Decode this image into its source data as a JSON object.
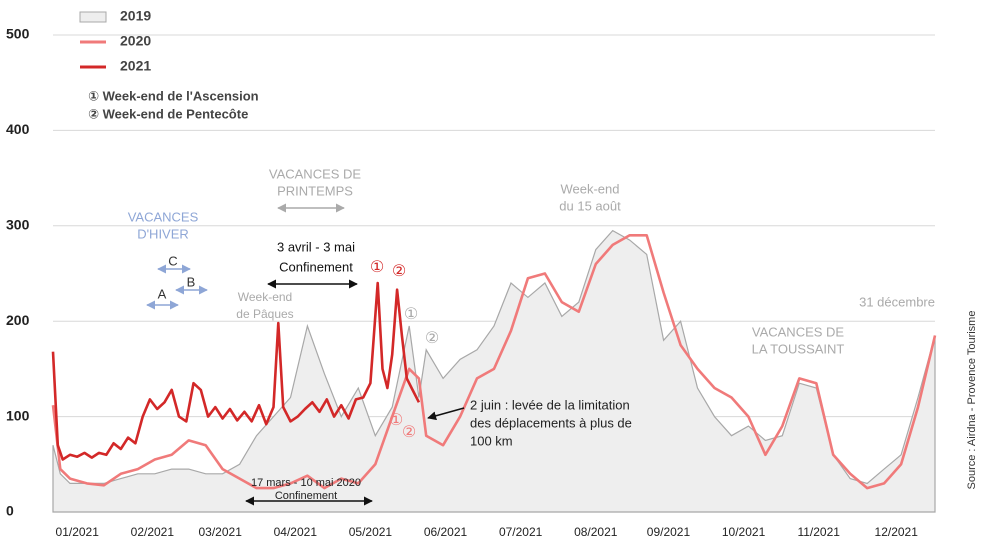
{
  "chart_data": {
    "type": "line",
    "xlim": [
      1,
      365
    ],
    "ylim": [
      0,
      500
    ],
    "yticks": [
      0,
      100,
      200,
      300,
      400,
      500
    ],
    "xticks": [
      {
        "value": 11,
        "label": "01/2021"
      },
      {
        "value": 42,
        "label": "02/2021"
      },
      {
        "value": 70,
        "label": "03/2021"
      },
      {
        "value": 101,
        "label": "04/2021"
      },
      {
        "value": 132,
        "label": "05/2021"
      },
      {
        "value": 163,
        "label": "06/2021"
      },
      {
        "value": 194,
        "label": "07/2021"
      },
      {
        "value": 225,
        "label": "08/2021"
      },
      {
        "value": 255,
        "label": "09/2021"
      },
      {
        "value": 286,
        "label": "10/2021"
      },
      {
        "value": 317,
        "label": "11/2021"
      },
      {
        "value": 349,
        "label": "12/2021"
      }
    ],
    "grid": true,
    "legend": "top-left",
    "series": [
      {
        "name": "2019",
        "color": "#a8a8a8",
        "fill": "#eeeeee",
        "kind": "area",
        "x": [
          1,
          4,
          8,
          15,
          22,
          29,
          36,
          43,
          50,
          57,
          64,
          71,
          78,
          85,
          92,
          99,
          106,
          113,
          120,
          127,
          134,
          141,
          148,
          152,
          155,
          162,
          169,
          176,
          183,
          190,
          197,
          204,
          211,
          218,
          225,
          232,
          239,
          246,
          253,
          260,
          267,
          274,
          281,
          288,
          295,
          302,
          309,
          316,
          323,
          330,
          337,
          344,
          351,
          358,
          365
        ],
        "values": [
          70,
          40,
          30,
          30,
          30,
          35,
          40,
          40,
          45,
          45,
          40,
          40,
          50,
          80,
          100,
          120,
          195,
          145,
          100,
          130,
          80,
          110,
          195,
          120,
          170,
          140,
          160,
          170,
          195,
          240,
          225,
          240,
          205,
          220,
          275,
          295,
          285,
          270,
          180,
          200,
          130,
          100,
          80,
          90,
          75,
          80,
          135,
          130,
          60,
          35,
          30,
          45,
          60,
          120,
          185
        ]
      },
      {
        "name": "2020",
        "color": "#f07a7a",
        "kind": "line",
        "x": [
          1,
          4,
          8,
          15,
          22,
          29,
          36,
          43,
          50,
          57,
          64,
          71,
          78,
          85,
          92,
          99,
          106,
          113,
          120,
          127,
          134,
          141,
          148,
          152,
          155,
          162,
          169,
          176,
          183,
          190,
          197,
          204,
          211,
          218,
          225,
          232,
          239,
          246,
          253,
          260,
          267,
          274,
          281,
          288,
          295,
          302,
          309,
          316,
          323,
          330,
          337,
          344,
          351,
          358,
          365
        ],
        "values": [
          112,
          45,
          35,
          30,
          28,
          40,
          45,
          55,
          60,
          75,
          70,
          45,
          35,
          25,
          25,
          30,
          38,
          25,
          35,
          30,
          50,
          100,
          150,
          140,
          80,
          70,
          100,
          140,
          150,
          190,
          245,
          250,
          220,
          210,
          260,
          280,
          290,
          290,
          230,
          175,
          150,
          130,
          120,
          100,
          60,
          90,
          140,
          135,
          60,
          40,
          25,
          30,
          50,
          110,
          185
        ]
      },
      {
        "name": "2021",
        "color": "#d32828",
        "kind": "line",
        "x": [
          1,
          3,
          5,
          8,
          11,
          14,
          17,
          20,
          23,
          26,
          29,
          32,
          35,
          38,
          41,
          44,
          47,
          50,
          53,
          56,
          59,
          62,
          65,
          68,
          71,
          74,
          77,
          80,
          83,
          86,
          89,
          92,
          94,
          96,
          99,
          102,
          105,
          108,
          111,
          114,
          117,
          120,
          123,
          126,
          129,
          132,
          135,
          137,
          139,
          141,
          143,
          145,
          147,
          149,
          152
        ],
        "values": [
          168,
          70,
          55,
          60,
          58,
          62,
          57,
          62,
          60,
          72,
          66,
          78,
          72,
          100,
          118,
          108,
          115,
          128,
          100,
          95,
          135,
          128,
          100,
          110,
          98,
          108,
          96,
          105,
          95,
          112,
          92,
          110,
          198,
          110,
          95,
          100,
          108,
          115,
          105,
          118,
          100,
          112,
          98,
          118,
          120,
          135,
          240,
          150,
          130,
          165,
          233,
          185,
          140,
          130,
          115
        ]
      }
    ],
    "notes": [
      "① Week-end de l'Ascension",
      "② Week-end de Pentecôte"
    ],
    "annotations": [
      {
        "lines": [
          "VACANCES",
          "D'HIVER"
        ],
        "color": "#8ea6d6"
      },
      {
        "lines": [
          "VACANCES DE",
          "PRINTEMPS"
        ],
        "color": "#aaaaaa"
      },
      {
        "lines": [
          "Week-end",
          "du 15 août"
        ],
        "color": "#aaaaaa"
      },
      {
        "lines": [
          "31 décembre"
        ],
        "color": "#aaaaaa"
      },
      {
        "lines": [
          "VACANCES DE",
          "LA TOUSSAINT"
        ],
        "color": "#aaaaaa"
      },
      {
        "lines": [
          "Week-end",
          "de Pâques"
        ],
        "color": "#aaaaaa"
      },
      {
        "lines": [
          "3 avril - 3 mai",
          "Confinement"
        ],
        "color": "#111111"
      },
      {
        "lines": [
          "2 juin : levée de la limitation",
          "des déplacements à plus de",
          "100 km"
        ],
        "color": "#222222"
      },
      {
        "lines": [
          "17 mars - 10 mai 2020",
          "Confinement"
        ],
        "color": "#222222"
      },
      {
        "lines": [
          "A"
        ],
        "color": "#333333"
      },
      {
        "lines": [
          "B"
        ],
        "color": "#333333"
      },
      {
        "lines": [
          "C"
        ],
        "color": "#333333"
      },
      {
        "lines": [
          "①"
        ],
        "color": "#d32828"
      },
      {
        "lines": [
          "②"
        ],
        "color": "#d32828"
      },
      {
        "lines": [
          "①"
        ],
        "color": "#aaaaaa"
      },
      {
        "lines": [
          "②"
        ],
        "color": "#aaaaaa"
      },
      {
        "lines": [
          "①"
        ],
        "color": "#f07a7a"
      },
      {
        "lines": [
          "②"
        ],
        "color": "#f07a7a"
      }
    ],
    "source": "Source : Airdna - Provence Tourisme"
  }
}
